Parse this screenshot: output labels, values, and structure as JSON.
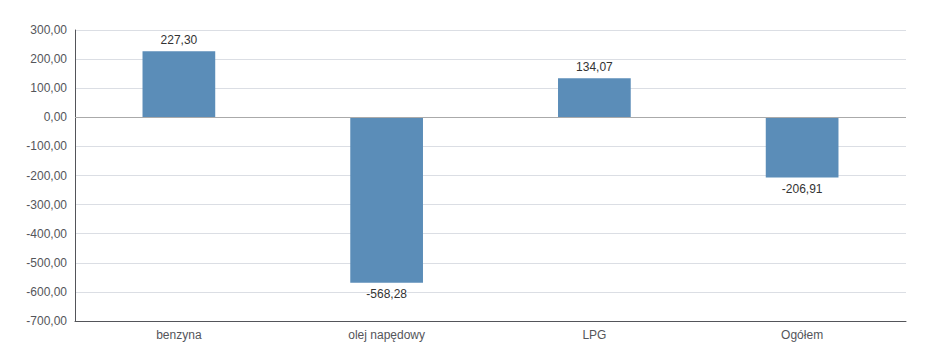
{
  "chart_data": {
    "type": "bar",
    "categories": [
      "benzyna",
      "olej napędowy",
      "LPG",
      "Ogółem"
    ],
    "values": [
      227.3,
      -568.28,
      134.07,
      -206.91
    ],
    "value_labels": [
      "227,30",
      "-568,28",
      "134,07",
      "-206,91"
    ],
    "data_labels": true,
    "color": "#5B8DB8",
    "ylim": [
      -700,
      300
    ],
    "yticks": [
      {
        "value": -700,
        "label": "-700,00"
      },
      {
        "value": -600,
        "label": "-600,00"
      },
      {
        "value": -500,
        "label": "-500,00"
      },
      {
        "value": -400,
        "label": "-400,00"
      },
      {
        "value": -300,
        "label": "-300,00"
      },
      {
        "value": -200,
        "label": "-200,00"
      },
      {
        "value": -100,
        "label": "-100,00"
      },
      {
        "value": 0,
        "label": "0,00"
      },
      {
        "value": 100,
        "label": "100,00"
      },
      {
        "value": 200,
        "label": "200,00"
      },
      {
        "value": 300,
        "label": "300,00"
      }
    ],
    "grid": true
  }
}
